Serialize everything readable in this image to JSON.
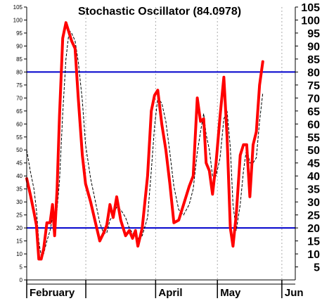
{
  "chart_data": {
    "type": "line",
    "title": "Stochastic Oscillator (84.0978)",
    "xlabel": "",
    "ylabel": "",
    "ylim": [
      0,
      105
    ],
    "yticks_left": [
      0,
      5,
      10,
      15,
      20,
      25,
      30,
      35,
      40,
      45,
      50,
      55,
      60,
      65,
      70,
      75,
      80,
      85,
      90,
      95,
      100,
      105
    ],
    "yticks_right": [
      5,
      10,
      15,
      20,
      25,
      30,
      35,
      40,
      45,
      50,
      55,
      60,
      65,
      70,
      75,
      80,
      85,
      90,
      95,
      100,
      105
    ],
    "x_range": [
      0,
      100
    ],
    "months": [
      {
        "label": "February",
        "x": 0
      },
      {
        "label": "",
        "x": 22
      },
      {
        "label": "April",
        "x": 48
      },
      {
        "label": "May",
        "x": 71
      },
      {
        "label": "Jun",
        "x": 95
      }
    ],
    "reference_lines": [
      80,
      20
    ],
    "grid": "vertical dotted at month boundaries",
    "colors": {
      "k_line": "#ff0000",
      "d_line": "#000000",
      "reference": "#0000cc",
      "grid": "#aaaaaa",
      "axis": "#000000"
    },
    "series": [
      {
        "role": "%K",
        "points": [
          [
            0,
            39
          ],
          [
            1.3,
            33
          ],
          [
            2.7,
            26
          ],
          [
            3.6,
            21
          ],
          [
            4.5,
            8
          ],
          [
            5.4,
            8
          ],
          [
            6.3,
            12
          ],
          [
            7.5,
            22
          ],
          [
            8.7,
            22
          ],
          [
            9.6,
            29
          ],
          [
            10.4,
            17
          ],
          [
            11.3,
            35
          ],
          [
            12.2,
            63
          ],
          [
            13.4,
            93
          ],
          [
            14.6,
            99
          ],
          [
            15.8,
            95
          ],
          [
            16.7,
            92
          ],
          [
            18,
            89
          ],
          [
            19.2,
            70
          ],
          [
            20.7,
            48
          ],
          [
            21.9,
            37
          ],
          [
            23.8,
            30
          ],
          [
            25.6,
            22
          ],
          [
            27.2,
            15
          ],
          [
            28.6,
            18
          ],
          [
            29.8,
            21
          ],
          [
            31,
            29
          ],
          [
            32.2,
            24
          ],
          [
            33.5,
            32
          ],
          [
            35,
            23
          ],
          [
            36.8,
            17
          ],
          [
            38.2,
            19
          ],
          [
            39.4,
            16
          ],
          [
            40.5,
            19
          ],
          [
            41.4,
            13
          ],
          [
            43,
            20
          ],
          [
            45,
            40
          ],
          [
            46.4,
            65
          ],
          [
            47.6,
            71
          ],
          [
            48.8,
            73
          ],
          [
            50.3,
            60
          ],
          [
            51.8,
            50
          ],
          [
            53.3,
            37
          ],
          [
            54.8,
            22
          ],
          [
            56.6,
            23
          ],
          [
            58.4,
            29
          ],
          [
            60.5,
            36
          ],
          [
            62,
            40
          ],
          [
            63.5,
            70
          ],
          [
            64.7,
            61
          ],
          [
            65.9,
            62
          ],
          [
            66.8,
            45
          ],
          [
            68,
            42
          ],
          [
            69.2,
            33
          ],
          [
            70.5,
            45
          ],
          [
            72,
            63
          ],
          [
            73.4,
            78
          ],
          [
            74.6,
            55
          ],
          [
            75.8,
            20
          ],
          [
            76.8,
            13
          ],
          [
            78,
            25
          ],
          [
            79.5,
            48
          ],
          [
            80.7,
            52
          ],
          [
            81.9,
            52
          ],
          [
            83.1,
            32
          ],
          [
            84.3,
            52
          ],
          [
            85.5,
            57
          ],
          [
            86.7,
            75
          ],
          [
            87.9,
            84
          ]
        ]
      },
      {
        "role": "%D",
        "points": [
          [
            0,
            50
          ],
          [
            1.3,
            42
          ],
          [
            2.7,
            35
          ],
          [
            3.6,
            27
          ],
          [
            4.5,
            15
          ],
          [
            5.4,
            9
          ],
          [
            6.3,
            10
          ],
          [
            7.5,
            15
          ],
          [
            8.7,
            19
          ],
          [
            9.6,
            24
          ],
          [
            10.4,
            23
          ],
          [
            11.3,
            27
          ],
          [
            12.2,
            38
          ],
          [
            13.4,
            64
          ],
          [
            14.6,
            85
          ],
          [
            15.8,
            96
          ],
          [
            16.7,
            95
          ],
          [
            18,
            92
          ],
          [
            19.2,
            84
          ],
          [
            20.7,
            69
          ],
          [
            21.9,
            52
          ],
          [
            23.8,
            39
          ],
          [
            25.6,
            30
          ],
          [
            27.2,
            22
          ],
          [
            28.6,
            18
          ],
          [
            29.8,
            18
          ],
          [
            31,
            23
          ],
          [
            32.2,
            25
          ],
          [
            33.5,
            28
          ],
          [
            35,
            27
          ],
          [
            36.8,
            24
          ],
          [
            38.2,
            20
          ],
          [
            39.4,
            18
          ],
          [
            40.5,
            18
          ],
          [
            41.4,
            16
          ],
          [
            43,
            17
          ],
          [
            45,
            24
          ],
          [
            46.4,
            42
          ],
          [
            47.6,
            59
          ],
          [
            48.8,
            70
          ],
          [
            50.3,
            68
          ],
          [
            51.8,
            61
          ],
          [
            53.3,
            49
          ],
          [
            54.8,
            36
          ],
          [
            56.6,
            27
          ],
          [
            58.4,
            25
          ],
          [
            60.5,
            29
          ],
          [
            62,
            35
          ],
          [
            63.5,
            49
          ],
          [
            64.7,
            57
          ],
          [
            65.9,
            64
          ],
          [
            66.8,
            56
          ],
          [
            68,
            50
          ],
          [
            69.2,
            40
          ],
          [
            70.5,
            40
          ],
          [
            72,
            47
          ],
          [
            73.4,
            62
          ],
          [
            74.6,
            65
          ],
          [
            75.8,
            51
          ],
          [
            76.8,
            29
          ],
          [
            78,
            19
          ],
          [
            79.5,
            29
          ],
          [
            80.7,
            42
          ],
          [
            81.9,
            51
          ],
          [
            83.1,
            45
          ],
          [
            84.3,
            45
          ],
          [
            85.5,
            47
          ],
          [
            86.7,
            61
          ],
          [
            87.9,
            72
          ]
        ]
      }
    ]
  }
}
